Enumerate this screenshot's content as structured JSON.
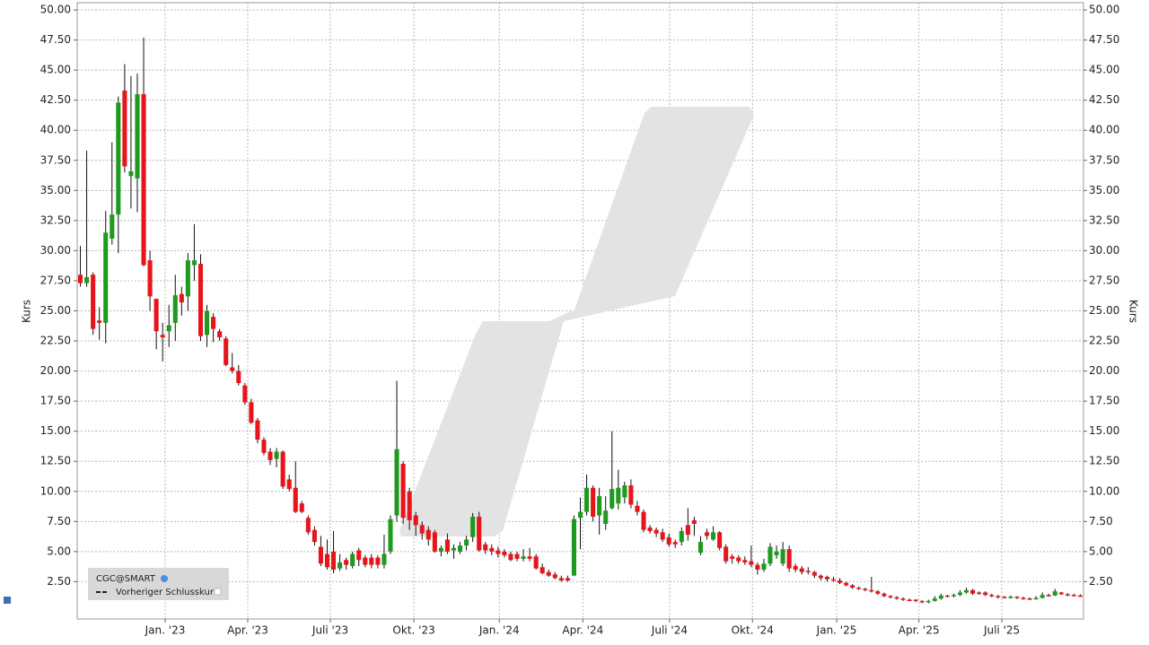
{
  "chart_data": {
    "type": "candlestick",
    "ylabel": "Kurs",
    "xlim": [
      -0.5,
      158.5
    ],
    "xticks": [
      {
        "value": 13.4,
        "label": "Jan. '23"
      },
      {
        "value": 26.45,
        "label": "Apr. '23"
      },
      {
        "value": 39.5,
        "label": "Juli '23"
      },
      {
        "value": 52.7,
        "label": "Okt. '23"
      },
      {
        "value": 66.2,
        "label": "Jan. '24"
      },
      {
        "value": 79.4,
        "label": "Apr. '24"
      },
      {
        "value": 93.1,
        "label": "Juli '24"
      },
      {
        "value": 106.2,
        "label": "Okt. '24"
      },
      {
        "value": 119.5,
        "label": "Jan. '25"
      },
      {
        "value": 132.5,
        "label": "Apr. '25"
      },
      {
        "value": 145.6,
        "label": "Juli '25"
      }
    ],
    "ylim": [
      -0.6,
      50.6
    ],
    "yticks": [
      {
        "value": 2.5,
        "label": "2.50"
      },
      {
        "value": 5,
        "label": "5.00"
      },
      {
        "value": 7.5,
        "label": "7.50"
      },
      {
        "value": 10,
        "label": "10.00"
      },
      {
        "value": 12.5,
        "label": "12.50"
      },
      {
        "value": 15,
        "label": "15.00"
      },
      {
        "value": 17.5,
        "label": "17.50"
      },
      {
        "value": 20,
        "label": "20.00"
      },
      {
        "value": 22.5,
        "label": "22.50"
      },
      {
        "value": 25,
        "label": "25.00"
      },
      {
        "value": 27.5,
        "label": "27.50"
      },
      {
        "value": 30,
        "label": "30.00"
      },
      {
        "value": 32.5,
        "label": "32.50"
      },
      {
        "value": 35,
        "label": "35.00"
      },
      {
        "value": 37.5,
        "label": "37.50"
      },
      {
        "value": 40,
        "label": "40.00"
      },
      {
        "value": 42.5,
        "label": "42.50"
      },
      {
        "value": 45,
        "label": "45.00"
      },
      {
        "value": 47.5,
        "label": "47.50"
      },
      {
        "value": 50,
        "label": "50.00"
      }
    ],
    "grid": true,
    "up_color": "#1e9a1e",
    "down_color": "#e8141c",
    "legend": {
      "entries": [
        "CGC@SMART",
        "Vorheriger Schlusskurs"
      ]
    },
    "open": [
      28,
      27.3,
      28,
      24.2,
      24,
      31,
      33,
      43.3,
      36.2,
      36,
      43,
      29.2,
      26,
      23,
      23.3,
      24,
      26.4,
      26.2,
      28.8,
      28.9,
      23,
      24.5,
      23.3,
      22.7,
      20.3,
      20,
      18.8,
      17.4,
      15.9,
      14.3,
      13.3,
      12.7,
      13.3,
      11,
      10.3,
      9,
      7.8,
      6.8,
      5.4,
      4.8,
      5,
      3.6,
      4.3,
      3.8,
      5.1,
      4.5,
      4.5,
      4.5,
      3.9,
      5,
      8,
      12.3,
      10,
      8,
      7.2,
      6.8,
      6.6,
      5,
      6,
      5.1,
      5,
      5.5,
      6.2,
      7.9,
      5.6,
      5.3,
      5.1,
      5,
      4.8,
      4.8,
      4.4,
      4.6,
      4.6,
      3.7,
      3.3,
      3.1,
      2.8,
      2.8,
      3,
      7.8,
      8.3,
      10.3,
      8,
      7.3,
      8.6,
      9,
      9.5,
      10.5,
      8.8,
      8.3,
      7,
      6.8,
      6.6,
      6.2,
      5.8,
      5.8,
      7.2,
      7.6,
      4.9,
      6.6,
      6,
      6.6,
      5.4,
      4.6,
      4.5,
      4.3,
      4.2,
      3.9,
      3.5,
      4,
      4.7,
      4,
      5.2,
      3.8,
      3.6,
      3.4,
      3.3,
      3,
      2.9,
      2.7,
      2.6,
      2.4,
      2.2,
      2,
      1.9,
      1.8,
      1.7,
      1.5,
      1.3,
      1.2,
      1.1,
      1,
      1,
      0.9,
      0.8,
      0.9,
      1.1,
      1.35,
      1.3,
      1.4,
      1.6,
      1.8,
      1.6,
      1.6,
      1.4,
      1.3,
      1.25,
      1.2,
      1.25,
      1.15,
      1.1,
      1.05,
      1.15,
      1.4,
      1.35,
      1.6,
      1.45,
      1.4,
      1.35
    ],
    "high": [
      30.4,
      38.3,
      28.2,
      25.3,
      33.3,
      39,
      42.8,
      45.5,
      44.5,
      44.7,
      47.7,
      30,
      26,
      24,
      25.5,
      28,
      27,
      29.8,
      32.2,
      29.7,
      25.5,
      24.8,
      23.5,
      22.9,
      21.5,
      20.5,
      19,
      17.7,
      16.1,
      14.5,
      13.6,
      13.6,
      13.4,
      11.4,
      12.5,
      9.2,
      8,
      7.1,
      6.3,
      6,
      6.7,
      4.8,
      4.5,
      5,
      5.3,
      4.7,
      4.8,
      4.7,
      6.4,
      8,
      19.2,
      12.5,
      10.3,
      8.3,
      7.5,
      7.1,
      6.8,
      5.5,
      6.5,
      5.6,
      5.8,
      6.3,
      8.2,
      8.3,
      5.8,
      5.6,
      5.4,
      5.2,
      5,
      5,
      5.2,
      5.3,
      4.8,
      4,
      3.5,
      3.3,
      3,
      3,
      8,
      9.5,
      11.4,
      10.5,
      10.3,
      9.6,
      15,
      11.8,
      10.8,
      11,
      9.2,
      8.5,
      7.2,
      7,
      6.9,
      6.5,
      6,
      7,
      8.6,
      7.9,
      6.3,
      6.9,
      7.1,
      6.7,
      5.6,
      4.8,
      4.7,
      4.6,
      5.5,
      4.1,
      4.4,
      5.7,
      5.5,
      5.8,
      5.5,
      4,
      3.8,
      3.7,
      3.4,
      3.1,
      3,
      2.9,
      2.8,
      2.5,
      2.3,
      2.1,
      2,
      2.9,
      1.8,
      1.6,
      1.4,
      1.3,
      1.2,
      1.1,
      1.05,
      0.95,
      1,
      1.3,
      1.5,
      1.4,
      1.5,
      1.8,
      2,
      1.9,
      1.7,
      1.7,
      1.5,
      1.4,
      1.3,
      1.35,
      1.3,
      1.25,
      1.2,
      1.3,
      1.6,
      1.5,
      1.9,
      1.65,
      1.55,
      1.5,
      1.45
    ],
    "low": [
      27,
      27,
      23,
      22.6,
      22.3,
      30.5,
      29.8,
      36.5,
      33.5,
      33.2,
      28.7,
      25,
      21.8,
      20.8,
      22,
      22.5,
      24.6,
      25,
      27.5,
      22.5,
      22,
      22.4,
      22.5,
      20.4,
      19.8,
      18.8,
      17.2,
      15.6,
      14,
      13,
      12.2,
      12,
      10.2,
      10,
      8.2,
      8.2,
      6.4,
      5.5,
      3.8,
      3.5,
      3.2,
      3.4,
      3.5,
      3.6,
      3.8,
      3.7,
      3.6,
      3.6,
      3.6,
      4.8,
      7.5,
      7.3,
      6.8,
      6.3,
      6,
      5.5,
      4.9,
      4.6,
      4.8,
      4.4,
      4.8,
      5.1,
      5.8,
      5,
      4.8,
      4.7,
      4.5,
      4.5,
      4.2,
      4.2,
      4.2,
      4.2,
      3.5,
      3.1,
      2.9,
      2.7,
      2.5,
      2.5,
      3,
      5.2,
      8,
      7.5,
      6.4,
      6.8,
      8.5,
      8.5,
      9,
      8.6,
      8,
      6.6,
      6.5,
      6.2,
      5.8,
      5.4,
      5.3,
      5.5,
      5.9,
      6.3,
      4.7,
      6,
      5.9,
      5.1,
      4,
      4,
      4,
      3.9,
      3.7,
      3.1,
      3.3,
      3.8,
      4.4,
      3.8,
      3.3,
      3.3,
      3.1,
      3.1,
      2.8,
      2.6,
      2.5,
      2.5,
      2.3,
      2.1,
      1.9,
      1.8,
      1.7,
      1.6,
      1.4,
      1.2,
      1.1,
      1,
      0.9,
      0.9,
      0.8,
      0.7,
      0.7,
      0.85,
      1,
      1.2,
      1.2,
      1.3,
      1.5,
      1.4,
      1.4,
      1.3,
      1.2,
      1.1,
      1.1,
      1.1,
      1.05,
      1,
      1,
      1,
      1.1,
      1.25,
      1.3,
      1.4,
      1.3,
      1.3,
      1.25
    ],
    "close": [
      27.3,
      27.8,
      23.5,
      24,
      31.5,
      33,
      42.3,
      37,
      36.6,
      43,
      28.8,
      26.2,
      23.3,
      22.8,
      23.8,
      26.3,
      25.7,
      29.2,
      29.2,
      22.9,
      25,
      23.5,
      22.8,
      20.5,
      20,
      19,
      17.4,
      15.7,
      14.3,
      13.2,
      12.6,
      13.3,
      10.4,
      10.2,
      8.3,
      8.3,
      6.6,
      5.8,
      4,
      3.7,
      3.5,
      4.1,
      3.9,
      4.8,
      4.3,
      3.9,
      3.9,
      3.9,
      4.8,
      7.7,
      13.5,
      7.8,
      7.6,
      7.2,
      6.5,
      6,
      5,
      5.3,
      5,
      5.3,
      5.5,
      6,
      7.9,
      5.1,
      5.1,
      5,
      4.8,
      4.7,
      4.3,
      4.4,
      4.6,
      4.4,
      3.6,
      3.2,
      3,
      2.8,
      2.6,
      2.6,
      7.7,
      8.3,
      10.3,
      7.9,
      9.6,
      8.4,
      10.2,
      10.3,
      10.5,
      8.9,
      8.3,
      6.8,
      6.7,
      6.5,
      6,
      5.6,
      5.6,
      6.7,
      6.4,
      7.3,
      5.8,
      6.3,
      6.6,
      5.3,
      4.2,
      4.4,
      4.2,
      4.1,
      3.9,
      3.5,
      4,
      5.4,
      5,
      5.2,
      3.6,
      3.5,
      3.3,
      3.3,
      3,
      2.8,
      2.7,
      2.6,
      2.4,
      2.2,
      2,
      1.9,
      1.8,
      1.7,
      1.5,
      1.3,
      1.2,
      1.1,
      1,
      0.95,
      0.9,
      0.8,
      0.9,
      1.1,
      1.35,
      1.3,
      1.4,
      1.6,
      1.8,
      1.5,
      1.5,
      1.4,
      1.3,
      1.2,
      1.2,
      1.25,
      1.15,
      1.1,
      1.05,
      1.15,
      1.4,
      1.35,
      1.7,
      1.45,
      1.35,
      1.35,
      1.3
    ]
  }
}
